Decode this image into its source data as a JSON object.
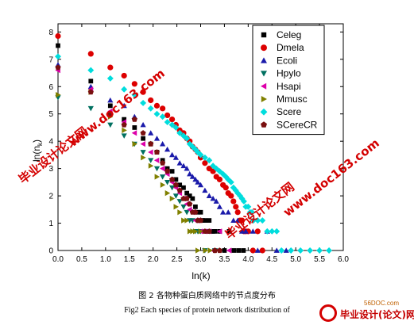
{
  "chart_data": {
    "type": "scatter",
    "title": "",
    "xlabel": "ln(k)",
    "ylabel": "ln(nk)",
    "ylabel_main": "ln(n",
    "ylabel_sub": "k",
    "ylabel_close": ")",
    "xlim": [
      0,
      6
    ],
    "ylim": [
      0,
      8.3
    ],
    "xticks": [
      "0.0",
      "0.5",
      "1.0",
      "1.5",
      "2.0",
      "2.5",
      "3.0",
      "3.5",
      "4.0",
      "4.5",
      "5.0",
      "5.5",
      "6.0"
    ],
    "yticks": [
      "0",
      "1",
      "2",
      "3",
      "4",
      "5",
      "6",
      "7",
      "8"
    ],
    "legend_position": "top-right",
    "series": [
      {
        "name": "Celeg",
        "marker": "square",
        "color": "#000000",
        "points": [
          [
            0.0,
            7.5
          ],
          [
            0.69,
            6.2
          ],
          [
            1.1,
            5.3
          ],
          [
            1.39,
            4.8
          ],
          [
            1.61,
            4.5
          ],
          [
            1.79,
            4.1
          ],
          [
            1.95,
            3.9
          ],
          [
            2.08,
            3.6
          ],
          [
            2.2,
            3.3
          ],
          [
            2.3,
            3.0
          ],
          [
            2.4,
            2.9
          ],
          [
            2.48,
            2.6
          ],
          [
            2.56,
            2.4
          ],
          [
            2.64,
            2.3
          ],
          [
            2.71,
            2.1
          ],
          [
            2.77,
            2.0
          ],
          [
            2.83,
            1.9
          ],
          [
            2.89,
            1.6
          ],
          [
            2.94,
            1.4
          ],
          [
            3.0,
            1.4
          ],
          [
            3.04,
            1.1
          ],
          [
            3.09,
            1.1
          ],
          [
            3.14,
            0.7
          ],
          [
            3.18,
            1.1
          ],
          [
            3.22,
            0.7
          ],
          [
            3.26,
            0.7
          ],
          [
            3.3,
            0.7
          ],
          [
            3.4,
            0.7
          ],
          [
            3.5,
            0.0
          ],
          [
            3.6,
            0.7
          ],
          [
            3.7,
            0.0
          ],
          [
            3.8,
            0.0
          ],
          [
            3.9,
            0.0
          ]
        ]
      },
      {
        "name": "Dmela",
        "marker": "circle",
        "color": "#dd0000",
        "points": [
          [
            0.0,
            7.85
          ],
          [
            0.69,
            7.2
          ],
          [
            1.1,
            6.7
          ],
          [
            1.39,
            6.4
          ],
          [
            1.61,
            6.1
          ],
          [
            1.79,
            5.8
          ],
          [
            1.95,
            5.5
          ],
          [
            2.08,
            5.3
          ],
          [
            2.2,
            5.2
          ],
          [
            2.3,
            4.95
          ],
          [
            2.4,
            4.8
          ],
          [
            2.48,
            4.6
          ],
          [
            2.56,
            4.4
          ],
          [
            2.64,
            4.3
          ],
          [
            2.71,
            4.1
          ],
          [
            2.77,
            4.0
          ],
          [
            2.83,
            3.8
          ],
          [
            2.89,
            3.7
          ],
          [
            2.94,
            3.6
          ],
          [
            3.0,
            3.4
          ],
          [
            3.09,
            3.2
          ],
          [
            3.18,
            3.0
          ],
          [
            3.26,
            2.9
          ],
          [
            3.33,
            2.7
          ],
          [
            3.4,
            2.6
          ],
          [
            3.47,
            2.4
          ],
          [
            3.53,
            2.3
          ],
          [
            3.58,
            2.1
          ],
          [
            3.64,
            2.0
          ],
          [
            3.69,
            1.8
          ],
          [
            3.74,
            1.6
          ],
          [
            3.78,
            1.4
          ],
          [
            3.83,
            1.1
          ],
          [
            3.87,
            1.1
          ],
          [
            3.91,
            0.7
          ],
          [
            3.95,
            0.7
          ],
          [
            4.0,
            0.7
          ],
          [
            4.1,
            0.0
          ],
          [
            4.2,
            0.7
          ],
          [
            4.3,
            0.0
          ]
        ]
      },
      {
        "name": "Ecoli",
        "marker": "triangle-up",
        "color": "#1a1aaa",
        "points": [
          [
            0.0,
            6.8
          ],
          [
            0.69,
            6.0
          ],
          [
            1.1,
            5.5
          ],
          [
            1.39,
            5.3
          ],
          [
            1.61,
            4.9
          ],
          [
            1.79,
            4.6
          ],
          [
            1.95,
            4.3
          ],
          [
            2.08,
            4.1
          ],
          [
            2.2,
            3.9
          ],
          [
            2.3,
            3.7
          ],
          [
            2.4,
            3.5
          ],
          [
            2.48,
            3.4
          ],
          [
            2.56,
            3.2
          ],
          [
            2.64,
            3.1
          ],
          [
            2.71,
            3.0
          ],
          [
            2.77,
            2.8
          ],
          [
            2.83,
            2.7
          ],
          [
            2.89,
            2.6
          ],
          [
            2.94,
            2.5
          ],
          [
            3.0,
            2.4
          ],
          [
            3.09,
            2.2
          ],
          [
            3.18,
            2.0
          ],
          [
            3.26,
            1.9
          ],
          [
            3.33,
            1.8
          ],
          [
            3.4,
            1.6
          ],
          [
            3.47,
            1.4
          ],
          [
            3.58,
            1.4
          ],
          [
            3.69,
            1.1
          ],
          [
            3.78,
            1.1
          ],
          [
            3.87,
            0.7
          ],
          [
            3.95,
            0.7
          ],
          [
            4.1,
            0.7
          ],
          [
            4.2,
            0.0
          ],
          [
            4.4,
            0.7
          ],
          [
            4.6,
            0.0
          ],
          [
            4.8,
            0.0
          ]
        ]
      },
      {
        "name": "Hpylo",
        "marker": "triangle-down",
        "color": "#007060",
        "points": [
          [
            0.0,
            5.6
          ],
          [
            0.69,
            5.2
          ],
          [
            1.1,
            4.6
          ],
          [
            1.39,
            4.2
          ],
          [
            1.61,
            3.9
          ],
          [
            1.79,
            3.6
          ],
          [
            1.95,
            3.3
          ],
          [
            2.08,
            3.0
          ],
          [
            2.2,
            2.7
          ],
          [
            2.3,
            2.5
          ],
          [
            2.4,
            2.3
          ],
          [
            2.48,
            2.0
          ],
          [
            2.56,
            1.8
          ],
          [
            2.64,
            1.6
          ],
          [
            2.71,
            1.4
          ],
          [
            2.77,
            1.1
          ],
          [
            2.83,
            1.1
          ],
          [
            2.89,
            0.7
          ],
          [
            2.94,
            0.7
          ],
          [
            3.0,
            0.7
          ],
          [
            3.09,
            0.0
          ],
          [
            3.18,
            0.7
          ],
          [
            3.3,
            0.0
          ]
        ]
      },
      {
        "name": "Hsapi",
        "marker": "triangle-left",
        "color": "#dd00aa",
        "points": [
          [
            0.0,
            6.6
          ],
          [
            0.69,
            5.9
          ],
          [
            1.1,
            5.1
          ],
          [
            1.39,
            4.7
          ],
          [
            1.61,
            4.3
          ],
          [
            1.79,
            3.9
          ],
          [
            1.95,
            3.6
          ],
          [
            2.08,
            3.3
          ],
          [
            2.2,
            3.0
          ],
          [
            2.3,
            2.8
          ],
          [
            2.4,
            2.5
          ],
          [
            2.48,
            2.3
          ],
          [
            2.56,
            2.1
          ],
          [
            2.64,
            1.9
          ],
          [
            2.71,
            1.7
          ],
          [
            2.77,
            1.5
          ],
          [
            2.83,
            1.4
          ],
          [
            2.89,
            1.1
          ],
          [
            2.94,
            1.1
          ],
          [
            3.0,
            0.7
          ],
          [
            3.09,
            0.7
          ],
          [
            3.18,
            0.7
          ],
          [
            3.26,
            0.0
          ],
          [
            3.4,
            0.7
          ],
          [
            3.6,
            0.0
          ]
        ]
      },
      {
        "name": "Mmusc",
        "marker": "triangle-right",
        "color": "#808000",
        "points": [
          [
            0.0,
            5.7
          ],
          [
            0.69,
            5.8
          ],
          [
            1.1,
            4.9
          ],
          [
            1.39,
            4.4
          ],
          [
            1.61,
            3.9
          ],
          [
            1.79,
            3.4
          ],
          [
            1.95,
            3.1
          ],
          [
            2.08,
            2.7
          ],
          [
            2.2,
            2.4
          ],
          [
            2.3,
            2.1
          ],
          [
            2.4,
            1.9
          ],
          [
            2.48,
            1.6
          ],
          [
            2.56,
            1.4
          ],
          [
            2.64,
            1.1
          ],
          [
            2.71,
            1.1
          ],
          [
            2.77,
            0.7
          ],
          [
            2.83,
            0.7
          ],
          [
            2.89,
            0.7
          ],
          [
            2.94,
            0.0
          ],
          [
            3.0,
            0.7
          ],
          [
            3.1,
            0.0
          ],
          [
            3.2,
            0.0
          ]
        ]
      },
      {
        "name": "Scere",
        "marker": "diamond",
        "color": "#00dddd",
        "points": [
          [
            0.0,
            7.1
          ],
          [
            0.69,
            6.6
          ],
          [
            1.1,
            6.3
          ],
          [
            1.39,
            5.9
          ],
          [
            1.61,
            5.7
          ],
          [
            1.79,
            5.4
          ],
          [
            1.95,
            5.2
          ],
          [
            2.08,
            5.0
          ],
          [
            2.2,
            4.9
          ],
          [
            2.3,
            4.7
          ],
          [
            2.4,
            4.6
          ],
          [
            2.48,
            4.5
          ],
          [
            2.56,
            4.3
          ],
          [
            2.64,
            4.2
          ],
          [
            2.71,
            4.1
          ],
          [
            2.77,
            3.9
          ],
          [
            2.83,
            3.8
          ],
          [
            2.89,
            3.7
          ],
          [
            2.94,
            3.6
          ],
          [
            3.0,
            3.5
          ],
          [
            3.09,
            3.4
          ],
          [
            3.18,
            3.3
          ],
          [
            3.26,
            3.1
          ],
          [
            3.33,
            3.0
          ],
          [
            3.4,
            2.9
          ],
          [
            3.47,
            2.8
          ],
          [
            3.53,
            2.7
          ],
          [
            3.58,
            2.6
          ],
          [
            3.64,
            2.5
          ],
          [
            3.69,
            2.3
          ],
          [
            3.74,
            2.2
          ],
          [
            3.78,
            2.1
          ],
          [
            3.83,
            2.0
          ],
          [
            3.87,
            1.9
          ],
          [
            3.91,
            1.8
          ],
          [
            3.95,
            1.6
          ],
          [
            4.0,
            1.6
          ],
          [
            4.04,
            1.4
          ],
          [
            4.08,
            1.4
          ],
          [
            4.11,
            1.1
          ],
          [
            4.2,
            1.1
          ],
          [
            4.3,
            1.1
          ],
          [
            4.4,
            0.7
          ],
          [
            4.5,
            0.7
          ],
          [
            4.6,
            0.7
          ],
          [
            4.7,
            0.0
          ],
          [
            4.9,
            0.0
          ],
          [
            5.1,
            0.0
          ],
          [
            5.3,
            0.0
          ],
          [
            5.5,
            0.0
          ],
          [
            5.7,
            0.0
          ]
        ]
      },
      {
        "name": "SCereCR",
        "marker": "pentagon",
        "color": "#7a1010",
        "points": [
          [
            0.0,
            6.7
          ],
          [
            0.69,
            5.8
          ],
          [
            1.1,
            5.0
          ],
          [
            1.39,
            4.6
          ],
          [
            1.61,
            4.8
          ],
          [
            1.79,
            4.3
          ],
          [
            1.95,
            3.9
          ],
          [
            2.08,
            3.6
          ],
          [
            2.2,
            3.2
          ],
          [
            2.3,
            2.9
          ],
          [
            2.4,
            2.6
          ],
          [
            2.48,
            2.4
          ],
          [
            2.56,
            2.2
          ],
          [
            2.64,
            1.9
          ],
          [
            2.71,
            1.9
          ],
          [
            2.77,
            1.7
          ],
          [
            2.83,
            1.4
          ],
          [
            2.89,
            1.4
          ],
          [
            2.94,
            1.1
          ],
          [
            3.0,
            1.1
          ],
          [
            3.09,
            0.7
          ],
          [
            3.18,
            0.7
          ],
          [
            3.3,
            0.0
          ],
          [
            3.4,
            0.0
          ]
        ]
      }
    ]
  },
  "watermarks": [
    "www.doc163.com",
    "毕业设计论文网",
    "毕业设计论文网",
    "www.doc163.com",
    "毕业设计论文网",
    "www.doc163.com"
  ],
  "captions": {
    "figure_cn": "图 2        各物种蛋白质网络中的节点度分布",
    "figure_en": "Fig2    Each species of protein network distribution of"
  },
  "logo": {
    "site": "56DOC.com",
    "text": "毕业设计(论文)网"
  }
}
